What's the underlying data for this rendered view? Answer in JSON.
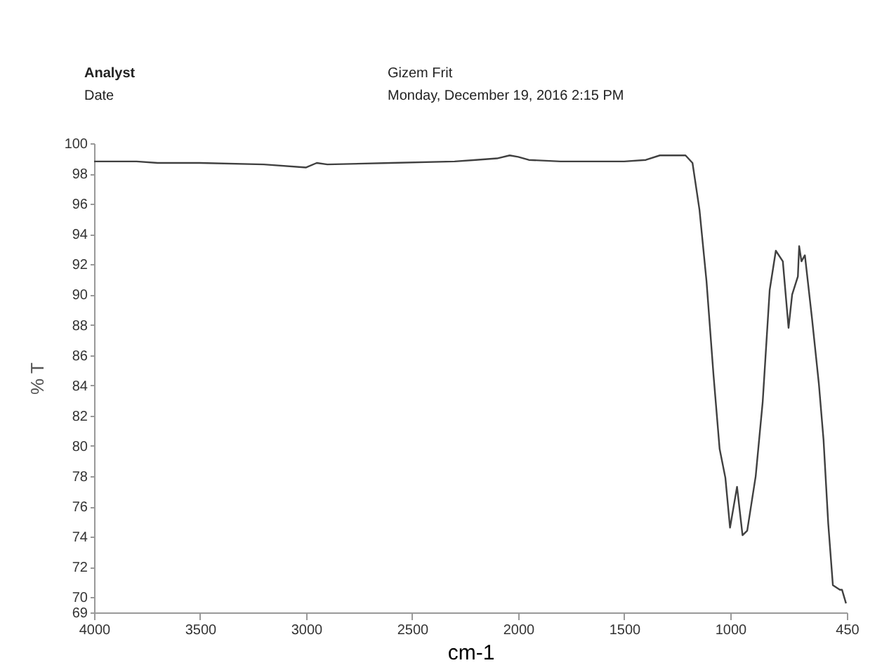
{
  "chart_data": {
    "type": "line",
    "xlabel": "cm-1",
    "ylabel": "% T",
    "color": "#404040",
    "annotations": [
      "Analyst",
      "Gizem Frit",
      "Date",
      "Monday, December 19, 2016 2:15 PM"
    ],
    "x": [
      4000,
      3800,
      3700,
      3500,
      3200,
      3000,
      2950,
      2900,
      2600,
      2300,
      2200,
      2100,
      2040,
      2000,
      1950,
      1800,
      1500,
      1398,
      1332,
      1211,
      1178,
      1145,
      1112,
      1079,
      1050,
      1023,
      1001,
      968,
      942,
      920,
      880,
      847,
      814,
      785,
      752,
      725,
      708,
      681,
      675,
      664,
      648,
      615,
      582,
      560,
      538,
      516,
      483,
      473,
      454
    ],
    "values": [
      98.8,
      98.8,
      98.7,
      98.7,
      98.6,
      98.4,
      98.7,
      98.6,
      98.7,
      98.8,
      98.9,
      99.0,
      99.2,
      99.1,
      98.9,
      98.8,
      98.8,
      98.9,
      99.2,
      99.2,
      98.7,
      95.6,
      90.9,
      84.7,
      79.8,
      77.9,
      74.6,
      77.3,
      74.1,
      74.4,
      78.0,
      82.9,
      90.3,
      92.9,
      92.2,
      87.8,
      90.0,
      91.2,
      93.2,
      92.2,
      92.6,
      88.5,
      84.1,
      80.4,
      74.9,
      70.8,
      70.5,
      70.5,
      69.6
    ],
    "xlim": [
      4000,
      450
    ],
    "xticks": [
      4000,
      3500,
      3000,
      2500,
      2000,
      1500,
      1000,
      450
    ],
    "ylim": [
      69,
      100
    ],
    "yticks": [
      69,
      70,
      72,
      74,
      76,
      78,
      80,
      82,
      84,
      86,
      88,
      90,
      92,
      94,
      96,
      98,
      100
    ]
  }
}
